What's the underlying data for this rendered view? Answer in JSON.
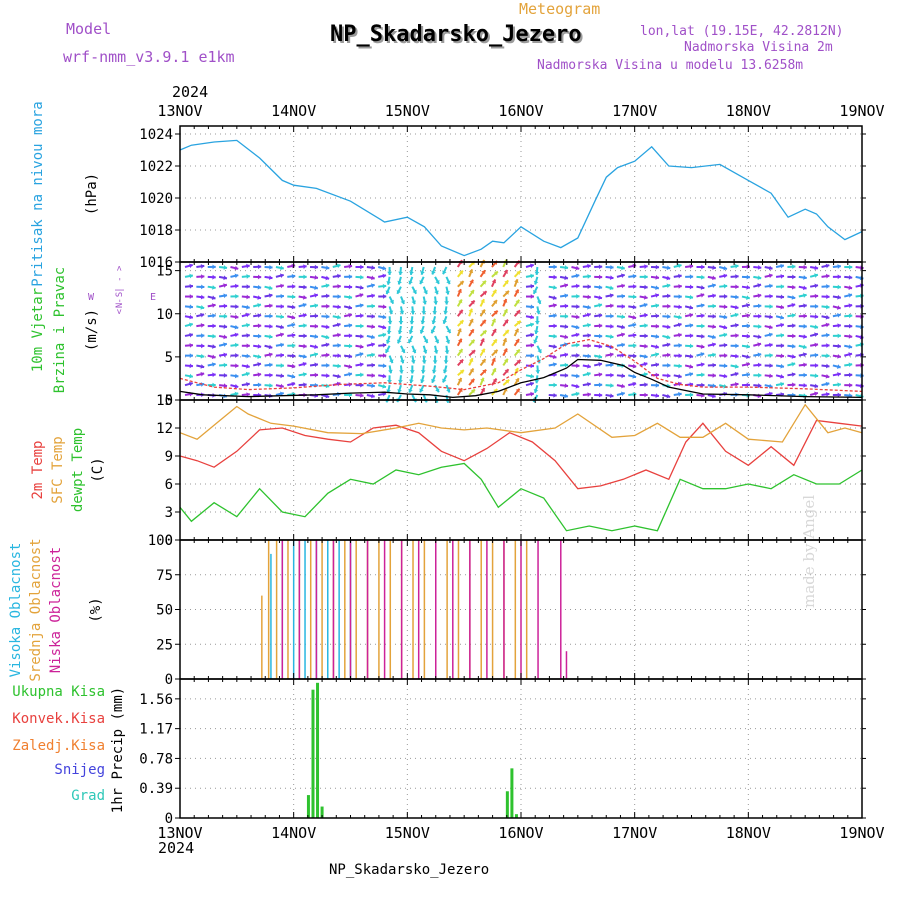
{
  "header": {
    "model_label": "Model",
    "model_name": "wrf-nmm_v3.9.1  e1km",
    "meteogram_label": "Meteogram",
    "station": "NP_Skadarsko_Jezero",
    "lonlat": "lon,lat (19.15E, 42.2812N)",
    "altitude": "Nadmorska Visina 2m",
    "model_altitude": "Nadmorska Visina u modelu 13.6258m",
    "footer_station": "NP_Skadarsko_Jezero",
    "watermark": "made by Angel",
    "year": "2024"
  },
  "colors": {
    "pressure": "#29a3e0",
    "temp2m": "#e8413e",
    "sfc": "#e3a33b",
    "dewpt": "#2ec22e",
    "wind_line": "#000000",
    "gust_line": "#e8413e",
    "high_cloud": "#29b6e0",
    "mid_cloud": "#e3a33b",
    "low_cloud": "#cc2299",
    "total_precip": "#2ec22e",
    "title_purple": "#a050c8"
  },
  "chart_data": [
    {
      "type": "line",
      "id": "pressure",
      "label": "Pritisak na nivou mora",
      "unit": "(hPa)",
      "x_ticks": [
        "13NOV",
        "14NOV",
        "15NOV",
        "16NOV",
        "17NOV",
        "18NOV",
        "19NOV"
      ],
      "ylim": [
        1016,
        1024.5
      ],
      "yticks": [
        1016,
        1018,
        1020,
        1022,
        1024
      ],
      "grid": true,
      "series": [
        {
          "key": "pressure",
          "x": [
            0,
            0.1,
            0.3,
            0.5,
            0.7,
            0.9,
            1.0,
            1.2,
            1.5,
            1.8,
            2.0,
            2.15,
            2.3,
            2.5,
            2.65,
            2.75,
            2.85,
            3.0,
            3.2,
            3.35,
            3.5,
            3.65,
            3.75,
            3.85,
            4.0,
            4.15,
            4.3,
            4.5,
            4.75,
            5.0,
            5.2,
            5.35,
            5.5,
            5.6,
            5.7,
            5.85,
            6.0
          ],
          "y": [
            1023.0,
            1023.3,
            1023.5,
            1023.6,
            1022.5,
            1021.1,
            1020.8,
            1020.6,
            1019.8,
            1018.5,
            1018.8,
            1018.2,
            1017.0,
            1016.4,
            1016.8,
            1017.3,
            1017.2,
            1018.2,
            1017.3,
            1016.9,
            1017.5,
            1019.8,
            1021.3,
            1021.9,
            1022.3,
            1023.2,
            1022.0,
            1021.9,
            1022.1,
            1021.1,
            1020.3,
            1018.8,
            1019.3,
            1019.0,
            1018.2,
            1017.4,
            1017.9
          ]
        }
      ]
    },
    {
      "type": "line",
      "id": "wind",
      "label": "10m Vjetar Brzina i Pravac",
      "unit": "(m/s)",
      "compass": {
        "n": "N",
        "s": "S",
        "w": "W",
        "e": "E",
        "row1": "< - | - >",
        "row2": "< - | - >"
      },
      "ylim": [
        0,
        16
      ],
      "yticks": [
        0,
        5,
        10,
        15
      ],
      "grid": true,
      "series": [
        {
          "key": "wind_line",
          "x": [
            0,
            0.2,
            0.4,
            0.6,
            0.9,
            1.2,
            1.5,
            1.8,
            2.0,
            2.2,
            2.4,
            2.6,
            2.8,
            3.0,
            3.2,
            3.4,
            3.5,
            3.7,
            3.9,
            4.0,
            4.15,
            4.3,
            4.6,
            5.0,
            5.5,
            6.0
          ],
          "y": [
            1.0,
            0.6,
            0.5,
            0.4,
            0.5,
            0.6,
            0.8,
            0.9,
            0.7,
            0.6,
            0.3,
            0.5,
            1.0,
            2.0,
            2.6,
            3.7,
            4.7,
            4.6,
            4.0,
            3.2,
            2.4,
            1.5,
            0.7,
            0.6,
            0.4,
            0.3
          ]
        },
        {
          "key": "gust_line",
          "x": [
            0,
            0.3,
            0.6,
            1.0,
            1.4,
            1.8,
            2.2,
            2.5,
            2.8,
            3.0,
            3.2,
            3.4,
            3.6,
            3.8,
            4.0,
            4.2,
            4.4,
            4.6,
            5.0,
            5.5,
            6.0
          ],
          "y": [
            2.5,
            1.5,
            1.2,
            1.4,
            1.8,
            2.0,
            1.6,
            1.2,
            2.0,
            3.5,
            4.8,
            6.5,
            7.0,
            6.2,
            4.5,
            2.5,
            1.8,
            1.5,
            1.5,
            1.3,
            1.0
          ]
        }
      ]
    },
    {
      "type": "line",
      "id": "temperature",
      "labels": [
        "2m Temp",
        "SFC Temp",
        "dewpt Temp"
      ],
      "unit": "(C)",
      "ylim": [
        0,
        15
      ],
      "yticks": [
        0,
        3,
        6,
        9,
        12,
        15
      ],
      "grid": true,
      "series": [
        {
          "key": "temp2m",
          "x": [
            0,
            0.15,
            0.3,
            0.5,
            0.7,
            0.9,
            1.1,
            1.3,
            1.5,
            1.7,
            1.9,
            2.1,
            2.3,
            2.5,
            2.7,
            2.9,
            3.1,
            3.3,
            3.5,
            3.7,
            3.9,
            4.1,
            4.3,
            4.45,
            4.6,
            4.8,
            5.0,
            5.2,
            5.4,
            5.6,
            5.8,
            6.0
          ],
          "y": [
            9.0,
            8.5,
            7.8,
            9.5,
            11.8,
            12.0,
            11.2,
            10.8,
            10.5,
            12.0,
            12.3,
            11.5,
            9.5,
            8.5,
            9.8,
            11.5,
            10.5,
            8.5,
            5.5,
            5.8,
            6.5,
            7.5,
            6.5,
            10.5,
            12.5,
            9.5,
            8.0,
            10.0,
            8.0,
            12.8,
            12.5,
            12.2
          ]
        },
        {
          "key": "sfc",
          "x": [
            0,
            0.15,
            0.35,
            0.5,
            0.6,
            0.8,
            1.0,
            1.3,
            1.6,
            1.9,
            2.1,
            2.3,
            2.5,
            2.7,
            3.0,
            3.3,
            3.5,
            3.8,
            4.0,
            4.2,
            4.4,
            4.6,
            4.8,
            5.0,
            5.3,
            5.5,
            5.7,
            5.85,
            6.0
          ],
          "y": [
            11.5,
            10.8,
            12.8,
            14.3,
            13.5,
            12.5,
            12.2,
            11.5,
            11.4,
            12.0,
            12.5,
            12.0,
            11.8,
            12.0,
            11.5,
            12.0,
            13.5,
            11.0,
            11.2,
            12.5,
            11.0,
            11.0,
            12.5,
            10.8,
            10.5,
            14.5,
            11.5,
            12.0,
            11.5
          ]
        },
        {
          "key": "dewpt",
          "x": [
            0,
            0.1,
            0.3,
            0.5,
            0.7,
            0.9,
            1.1,
            1.3,
            1.5,
            1.7,
            1.9,
            2.1,
            2.3,
            2.5,
            2.65,
            2.8,
            3.0,
            3.2,
            3.4,
            3.6,
            3.8,
            4.0,
            4.2,
            4.4,
            4.6,
            4.8,
            5.0,
            5.2,
            5.4,
            5.6,
            5.8,
            6.0
          ],
          "y": [
            3.5,
            2.0,
            4.0,
            2.5,
            5.5,
            3.0,
            2.5,
            5.0,
            6.5,
            6.0,
            7.5,
            7.0,
            7.8,
            8.2,
            6.5,
            3.5,
            5.5,
            4.5,
            1.0,
            1.5,
            1.0,
            1.5,
            1.0,
            6.5,
            5.5,
            5.5,
            6.0,
            5.5,
            7.0,
            6.0,
            6.0,
            7.5
          ]
        }
      ]
    },
    {
      "type": "bar",
      "id": "clouds",
      "labels": [
        "Visoka Oblacnost",
        "Srednja Oblacnost",
        "Niska Oblacnost"
      ],
      "unit": "(%)",
      "ylim": [
        0,
        100
      ],
      "yticks": [
        0,
        25,
        50,
        75,
        100
      ],
      "grid": true,
      "series": [
        {
          "key": "high_cloud",
          "x": [
            0.8,
            0.9,
            1.0,
            1.1,
            1.2,
            1.3,
            1.4,
            1.5
          ],
          "values": [
            90,
            100,
            100,
            100,
            100,
            100,
            100,
            100
          ]
        },
        {
          "key": "mid_cloud",
          "x": [
            0.72,
            0.78,
            0.85,
            0.95,
            1.05,
            1.15,
            1.25,
            1.35,
            1.45,
            1.55,
            1.65,
            1.75,
            1.85,
            1.95,
            2.05,
            2.15,
            2.25,
            2.35,
            2.45,
            2.55,
            2.65,
            2.75,
            2.85,
            2.95,
            3.05
          ],
          "values": [
            60,
            100,
            100,
            100,
            100,
            100,
            100,
            100,
            100,
            100,
            100,
            100,
            100,
            100,
            100,
            100,
            100,
            100,
            100,
            100,
            100,
            100,
            100,
            100,
            100
          ]
        },
        {
          "key": "low_cloud",
          "x": [
            0.9,
            1.05,
            1.2,
            1.35,
            1.5,
            1.65,
            1.8,
            1.95,
            2.1,
            2.25,
            2.4,
            2.55,
            2.7,
            2.85,
            3.0,
            3.15,
            3.35,
            3.4
          ],
          "values": [
            100,
            100,
            100,
            100,
            100,
            100,
            100,
            100,
            100,
            100,
            100,
            100,
            100,
            100,
            100,
            100,
            100,
            20
          ]
        }
      ]
    },
    {
      "type": "bar",
      "id": "precip",
      "labels": [
        "Ukupna Kisa",
        "Konvek.Kisa",
        "Zaledj.Kisa",
        "Snijeg",
        "Grad"
      ],
      "unit": "1hr Precip (mm)",
      "ylim": [
        0,
        1.82
      ],
      "yticks": [
        0,
        0.39,
        0.78,
        1.17,
        1.56
      ],
      "grid": true,
      "series": [
        {
          "key": "total_precip",
          "x": [
            1.13,
            1.17,
            1.21,
            1.25,
            2.88,
            2.92,
            2.96
          ],
          "values": [
            0.3,
            1.68,
            1.77,
            0.15,
            0.35,
            0.65,
            0.05
          ]
        }
      ]
    }
  ]
}
